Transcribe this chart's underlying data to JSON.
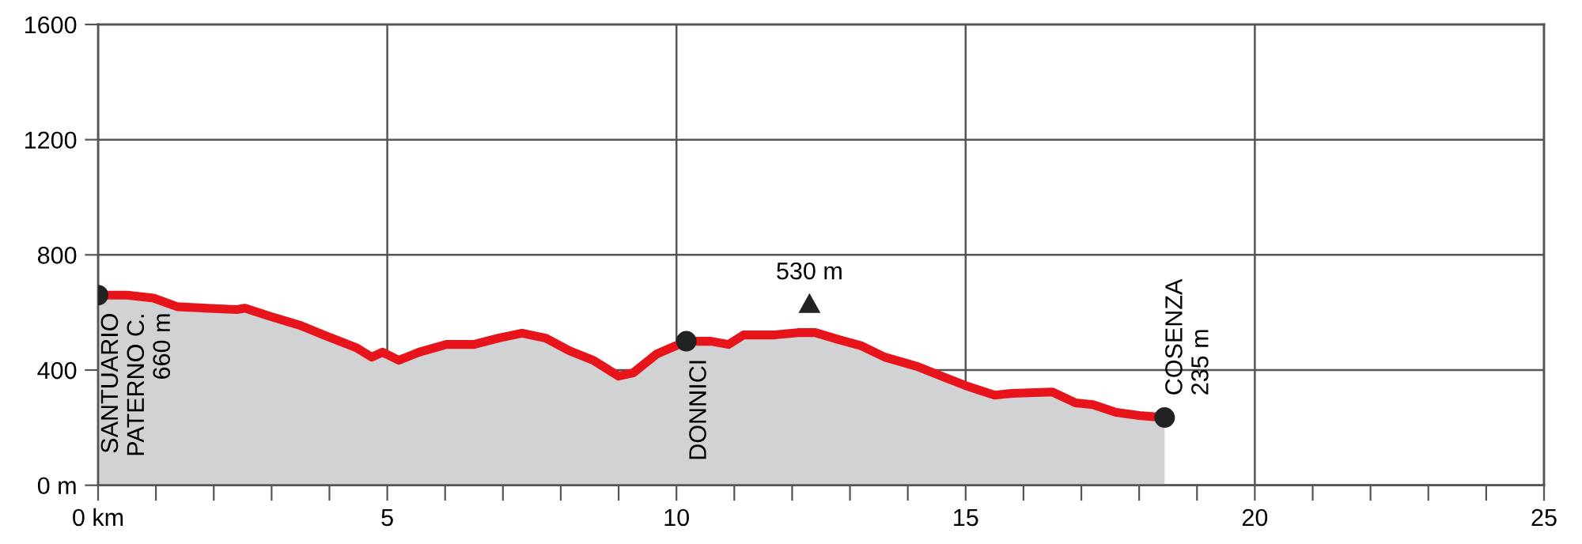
{
  "chart_data": {
    "type": "area",
    "xlim": [
      0,
      25
    ],
    "ylim": [
      0,
      1600
    ],
    "xticks": [
      {
        "value": 0,
        "label": "0 km"
      },
      {
        "value": 1,
        "label": null
      },
      {
        "value": 2,
        "label": null
      },
      {
        "value": 3,
        "label": null
      },
      {
        "value": 4,
        "label": null
      },
      5,
      {
        "value": 6,
        "label": null
      },
      {
        "value": 7,
        "label": null
      },
      {
        "value": 8,
        "label": null
      },
      {
        "value": 9,
        "label": null
      },
      10,
      {
        "value": 11,
        "label": null
      },
      {
        "value": 12,
        "label": null
      },
      {
        "value": 13,
        "label": null
      },
      {
        "value": 14,
        "label": null
      },
      15,
      {
        "value": 16,
        "label": null
      },
      {
        "value": 17,
        "label": null
      },
      {
        "value": 18,
        "label": null
      },
      {
        "value": 19,
        "label": null
      },
      20,
      {
        "value": 21,
        "label": null
      },
      {
        "value": 22,
        "label": null
      },
      {
        "value": 23,
        "label": null
      },
      {
        "value": 24,
        "label": null
      },
      25
    ],
    "yticks": [
      {
        "value": 0,
        "label": "0 m"
      },
      400,
      800,
      1200,
      1600
    ],
    "grid": true,
    "series": [
      {
        "color": "#e8141b",
        "x": [
          0,
          0.5,
          0.96,
          1.37,
          1.86,
          2.4,
          2.54,
          2.95,
          3.5,
          3.9,
          4.46,
          4.73,
          4.92,
          5.2,
          5.55,
          6.02,
          6.5,
          6.92,
          7.33,
          7.74,
          8.15,
          8.56,
          9.0,
          9.25,
          9.66,
          10.17,
          10.6,
          10.9,
          11.16,
          11.7,
          12.1,
          12.4,
          12.8,
          13.2,
          13.6,
          14.17,
          14.58,
          15.0,
          15.5,
          15.8,
          16.5,
          16.9,
          17.2,
          17.6,
          18.0,
          18.44
        ],
        "values": [
          660,
          660,
          650,
          620,
          615,
          610,
          615,
          588,
          555,
          522,
          478,
          445,
          462,
          434,
          462,
          489,
          489,
          511,
          528,
          511,
          467,
          434,
          379,
          390,
          456,
          500,
          500,
          489,
          522,
          522,
          530,
          530,
          506,
          484,
          445,
          412,
          379,
          346,
          313,
          319,
          324,
          286,
          280,
          253,
          242,
          235
        ]
      },
      {
        "type": "scatter",
        "color": "#222222",
        "marker": "circle",
        "x": [
          0,
          10.17,
          18.44
        ],
        "values": [
          660,
          500,
          235
        ]
      }
    ],
    "annotations": [
      {
        "text": "SANTUARIO\nPATERNO C.\n660 m",
        "x": 0,
        "y": 660
      },
      {
        "text": "DONNICI",
        "x": 10.17,
        "y": 500
      },
      {
        "text": "530 m",
        "x": 12.3,
        "y": 530
      },
      {
        "text": "COSENZA\n235 m",
        "x": 18.44,
        "y": 235
      }
    ]
  }
}
